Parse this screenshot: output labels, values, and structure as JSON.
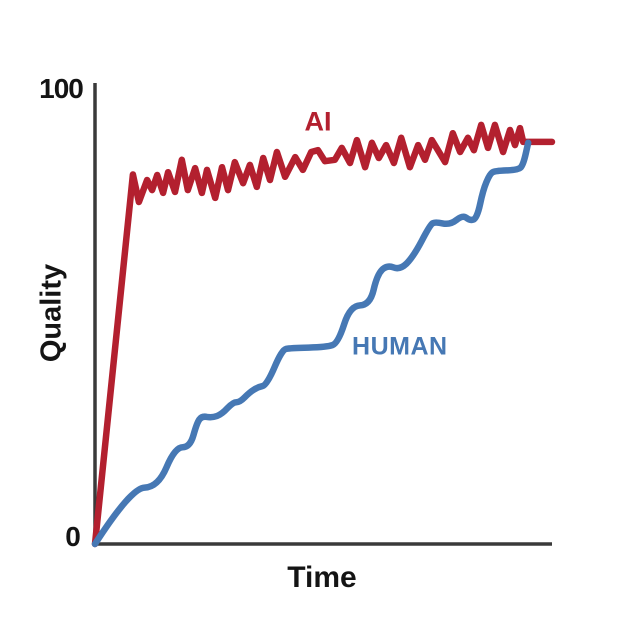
{
  "chart_data": {
    "type": "line",
    "title": "",
    "xlabel": "Time",
    "ylabel": "Quality",
    "xlim": [
      0,
      100
    ],
    "ylim": [
      0,
      100
    ],
    "grid": false,
    "background_color": "#ffffff",
    "axis_color": "#3a3a3a",
    "text_color": "#141414",
    "x_ticks": [],
    "y_ticks": [
      {
        "value": 0,
        "label": "0"
      },
      {
        "value": 100,
        "label": "100"
      }
    ],
    "legend": "inline labels beside lines",
    "series": [
      {
        "name": "AI",
        "label": "AI",
        "color": "#b3202f",
        "line_style": "jagged",
        "description": "rises almost vertically from 0 to ~80, then oscillates with small zigzags trending up, ending flat at ~88",
        "points": [
          [
            0,
            0
          ],
          [
            8.3,
            80.5
          ],
          [
            9.6,
            74.5
          ],
          [
            11.4,
            79.3
          ],
          [
            12.5,
            77.1
          ],
          [
            13.6,
            80.4
          ],
          [
            14.9,
            76.5
          ],
          [
            16,
            81
          ],
          [
            17.5,
            76.7
          ],
          [
            19,
            83.7
          ],
          [
            20.3,
            77.1
          ],
          [
            21.9,
            81.9
          ],
          [
            23.4,
            76.5
          ],
          [
            24.5,
            81.5
          ],
          [
            26.3,
            75.4
          ],
          [
            27.8,
            82.1
          ],
          [
            29.1,
            77.1
          ],
          [
            30.6,
            83.2
          ],
          [
            32.4,
            78.6
          ],
          [
            33.9,
            82.6
          ],
          [
            35.4,
            77.8
          ],
          [
            36.8,
            84.1
          ],
          [
            38.3,
            79.3
          ],
          [
            39.8,
            85.4
          ],
          [
            41.6,
            80
          ],
          [
            43.8,
            84.3
          ],
          [
            45.5,
            81.5
          ],
          [
            47.3,
            85.4
          ],
          [
            48.8,
            85.8
          ],
          [
            50.3,
            83.4
          ],
          [
            52.5,
            83.7
          ],
          [
            54,
            86.3
          ],
          [
            55.8,
            83
          ],
          [
            57.3,
            88
          ],
          [
            59.1,
            82.1
          ],
          [
            60.6,
            87.4
          ],
          [
            62.1,
            84.1
          ],
          [
            63.7,
            86.9
          ],
          [
            65.4,
            83
          ],
          [
            67,
            88.5
          ],
          [
            68.9,
            82.1
          ],
          [
            70.7,
            86.9
          ],
          [
            72.2,
            83.7
          ],
          [
            73.7,
            88
          ],
          [
            76.6,
            83.2
          ],
          [
            78.3,
            89.5
          ],
          [
            79.9,
            85.4
          ],
          [
            81.6,
            88.5
          ],
          [
            82.9,
            85.8
          ],
          [
            84.5,
            91.3
          ],
          [
            86,
            86.3
          ],
          [
            87.5,
            91.3
          ],
          [
            89.3,
            85.4
          ],
          [
            90.8,
            90.2
          ],
          [
            91.9,
            86.9
          ],
          [
            93,
            90.6
          ],
          [
            93.7,
            87.6
          ],
          [
            100,
            87.6
          ]
        ]
      },
      {
        "name": "HUMAN",
        "label": "HUMAN",
        "color": "#4678b4",
        "line_style": "smooth",
        "description": "smooth rounded staircase climbing from 0 to ~87, merging with the AI line at the far right",
        "points": [
          [
            0,
            0
          ],
          [
            7.9,
            12.2
          ],
          [
            13.8,
            12.4
          ],
          [
            17.5,
            21.1
          ],
          [
            20.8,
            21.1
          ],
          [
            22.3,
            26.4
          ],
          [
            23.4,
            27.9
          ],
          [
            25.6,
            27.5
          ],
          [
            27.8,
            28.3
          ],
          [
            30.2,
            30.9
          ],
          [
            31.7,
            30.9
          ],
          [
            33.9,
            33.1
          ],
          [
            35.7,
            34.2
          ],
          [
            37.6,
            34.6
          ],
          [
            40.9,
            42.3
          ],
          [
            42.7,
            42.7
          ],
          [
            50.8,
            42.9
          ],
          [
            53.2,
            43.8
          ],
          [
            55.8,
            51.9
          ],
          [
            60.2,
            52.1
          ],
          [
            61.7,
            58.6
          ],
          [
            63.9,
            60.8
          ],
          [
            66.7,
            59.7
          ],
          [
            69.6,
            62.5
          ],
          [
            73.3,
            69.5
          ],
          [
            74.4,
            70.2
          ],
          [
            77.7,
            69.5
          ],
          [
            80.5,
            71.7
          ],
          [
            82.1,
            70.4
          ],
          [
            83.6,
            71
          ],
          [
            84.9,
            77.1
          ],
          [
            86.4,
            80.6
          ],
          [
            87.5,
            81.3
          ],
          [
            92.6,
            81.5
          ],
          [
            93.7,
            82.6
          ],
          [
            94.8,
            87.4
          ]
        ]
      }
    ],
    "annotations": [
      {
        "text": "AI",
        "x": 48.8,
        "y": 91.9,
        "color": "#b3202f"
      },
      {
        "text": "HUMAN",
        "x": 66.7,
        "y": 42.9,
        "color": "#4678b4"
      }
    ]
  }
}
